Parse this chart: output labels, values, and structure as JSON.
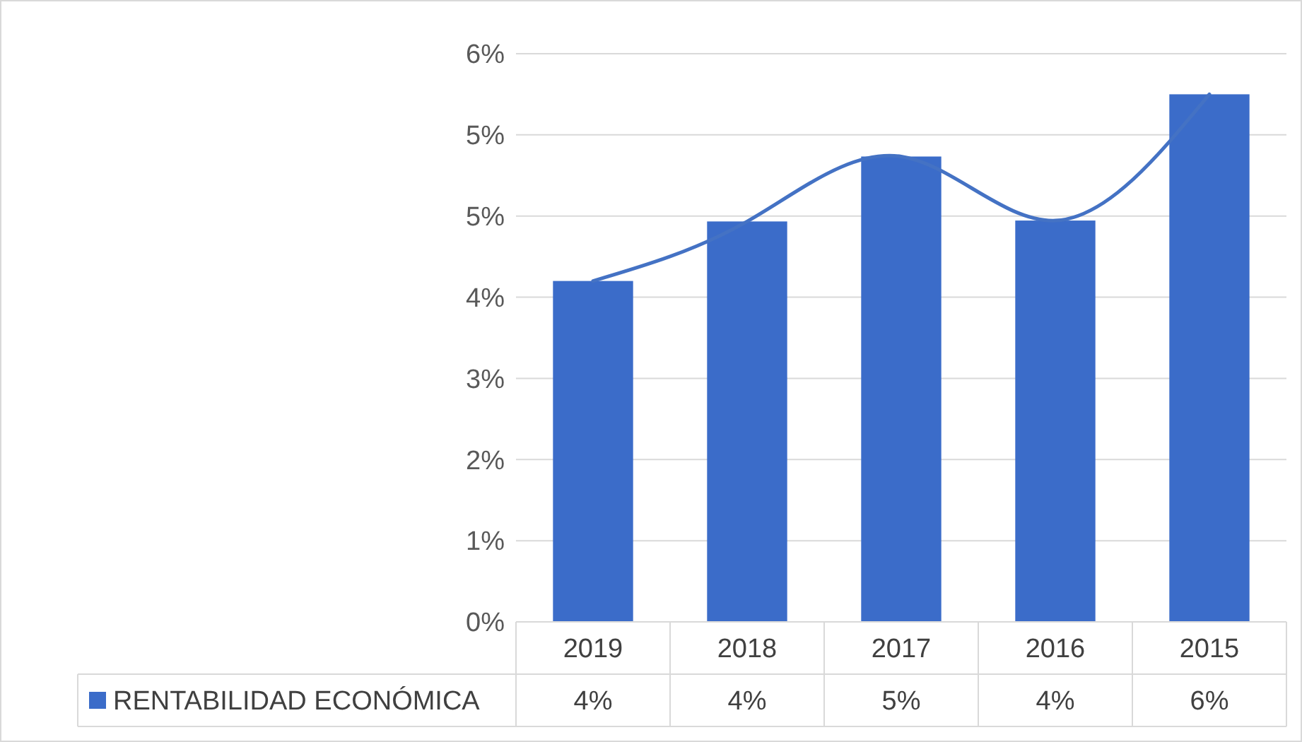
{
  "chart_data": {
    "type": "bar",
    "categories": [
      "2019",
      "2018",
      "2017",
      "2016",
      "2015"
    ],
    "series": [
      {
        "name": "RENTABILIDAD ECONÓMICA",
        "color": "#3b6cc9",
        "values": [
          3.78,
          4.44,
          5.16,
          4.45,
          5.85
        ],
        "value_labels": [
          "4%",
          "4%",
          "5%",
          "4%",
          "6%"
        ]
      },
      {
        "type": "line",
        "color": "#4472c4",
        "values": [
          3.78,
          4.44,
          5.16,
          4.45,
          5.85
        ]
      }
    ],
    "ylim": [
      0,
      6.3
    ],
    "yticks": [
      {
        "value": 0,
        "label": "0%"
      },
      {
        "value": 0.9,
        "label": "1%"
      },
      {
        "value": 1.8,
        "label": "2%"
      },
      {
        "value": 2.7,
        "label": "3%"
      },
      {
        "value": 3.6,
        "label": "4%"
      },
      {
        "value": 4.5,
        "label": "5%"
      },
      {
        "value": 5.4,
        "label": "5%"
      },
      {
        "value": 6.3,
        "label": "6%"
      }
    ],
    "grid": "y",
    "legend": "bottom left"
  }
}
